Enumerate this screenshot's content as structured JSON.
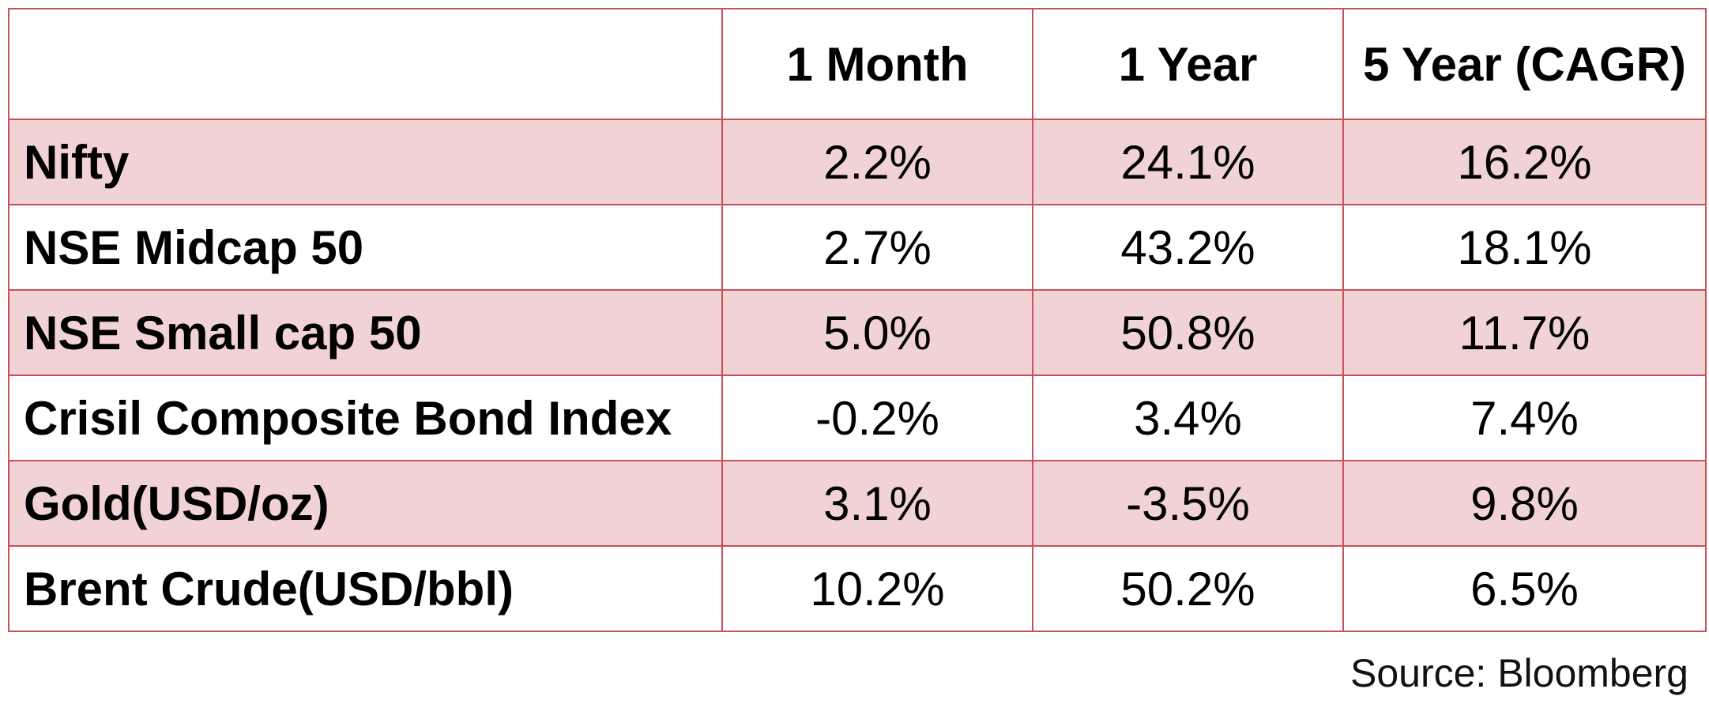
{
  "table": {
    "headers": [
      "",
      "1 Month",
      "1 Year",
      "5 Year (CAGR)"
    ],
    "rows": [
      {
        "name": "Nifty",
        "one_month": "2.2%",
        "one_year": "24.1%",
        "five_year_cagr": "16.2%"
      },
      {
        "name": "NSE Midcap 50",
        "one_month": "2.7%",
        "one_year": "43.2%",
        "five_year_cagr": "18.1%"
      },
      {
        "name": "NSE Small cap 50",
        "one_month": "5.0%",
        "one_year": "50.8%",
        "five_year_cagr": "11.7%"
      },
      {
        "name": "Crisil Composite Bond Index",
        "one_month": "-0.2%",
        "one_year": "3.4%",
        "five_year_cagr": "7.4%"
      },
      {
        "name": "Gold(USD/oz)",
        "one_month": "3.1%",
        "one_year": "-3.5%",
        "five_year_cagr": "9.8%"
      },
      {
        "name": "Brent Crude(USD/bbl)",
        "one_month": "10.2%",
        "one_year": "50.2%",
        "five_year_cagr": "6.5%"
      }
    ]
  },
  "source_note": "Source: Bloomberg",
  "colors": {
    "border": "#c9505a",
    "shaded_row": "#f2d3d5",
    "plain_row": "#ffffff"
  }
}
